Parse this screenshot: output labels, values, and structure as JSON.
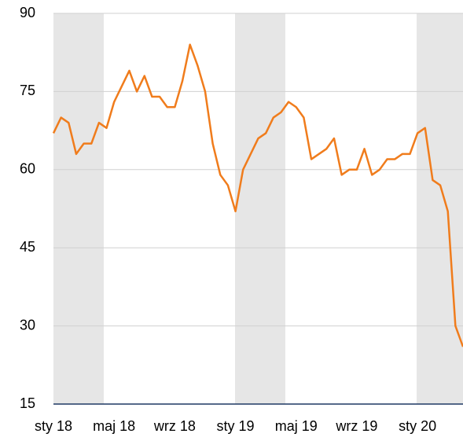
{
  "chart_data": {
    "type": "line",
    "x": [
      0,
      1,
      2,
      3,
      4,
      5,
      6,
      7,
      8,
      9,
      10,
      11,
      12,
      13,
      14,
      15,
      16,
      17,
      18,
      19,
      20,
      21,
      22,
      23,
      24,
      25,
      26,
      27,
      28,
      29,
      30,
      31,
      32,
      33,
      34,
      35,
      36,
      37,
      38,
      39,
      40,
      41,
      42,
      43,
      44,
      45,
      46,
      47,
      48,
      49,
      50,
      51,
      52,
      53,
      54
    ],
    "series": [
      {
        "name": null,
        "color": "#f07c1c",
        "values": [
          67,
          70,
          69,
          63,
          65,
          65,
          69,
          68,
          73,
          76,
          79,
          75,
          78,
          74,
          74,
          72,
          72,
          77,
          84,
          80,
          75,
          65,
          59,
          57,
          52,
          60,
          63,
          66,
          67,
          70,
          71,
          73,
          72,
          70,
          62,
          63,
          64,
          66,
          59,
          60,
          60,
          64,
          59,
          60,
          62,
          62,
          63,
          63,
          67,
          68,
          58,
          57,
          52,
          30,
          26
        ]
      }
    ],
    "xlim": [
      0,
      54
    ],
    "xticks": [
      {
        "value": 0,
        "label": "sty 18"
      },
      {
        "value": 8,
        "label": "maj 18"
      },
      {
        "value": 16,
        "label": "wrz 18"
      },
      {
        "value": 24,
        "label": "sty 19"
      },
      {
        "value": 32,
        "label": "maj 19"
      },
      {
        "value": 40,
        "label": "wrz 19"
      },
      {
        "value": 48,
        "label": "sty 20"
      }
    ],
    "ylim": [
      15,
      90
    ],
    "yticks": [
      15,
      30,
      45,
      60,
      75,
      90
    ],
    "grid": true
  }
}
